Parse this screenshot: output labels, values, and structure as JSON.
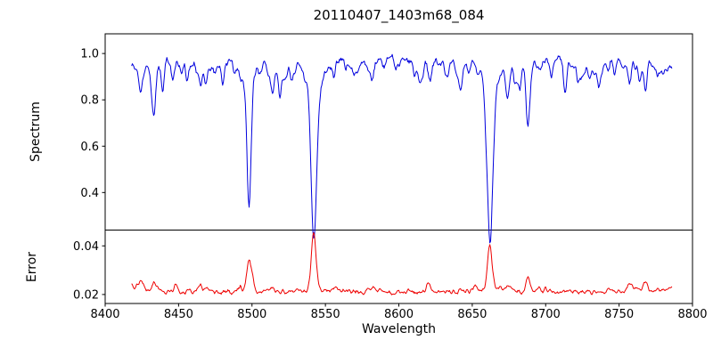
{
  "figure": {
    "background": "#ffffff"
  },
  "chart_data": {
    "type": "line",
    "title": "20110407_1403m68_084",
    "xlabel": "Wavelength",
    "x_range": [
      8400,
      8800
    ],
    "x_ticks": [
      8400,
      8450,
      8500,
      8550,
      8600,
      8650,
      8700,
      8750,
      8800
    ],
    "data_x_range": [
      8418,
      8786
    ],
    "grid": false,
    "legend": "none",
    "noise_seed": 20110407,
    "panels": [
      {
        "name": "spectrum",
        "ylabel": "Spectrum",
        "ylim": [
          0.238,
          1.085
        ],
        "yticks": [
          "0.4",
          "0.6",
          "0.8",
          "1.0"
        ],
        "color": "#0000dd",
        "baseline": 0.97,
        "noise_amp": 0.02,
        "absorption_lines": [
          [
            8424,
            0.88,
            1.2
          ],
          [
            8433,
            0.755,
            1.3
          ],
          [
            8439,
            0.87,
            1.0
          ],
          [
            8446,
            0.9,
            1.0
          ],
          [
            8452,
            0.92,
            0.9
          ],
          [
            8456,
            0.9,
            0.9
          ],
          [
            8465,
            0.87,
            1.1
          ],
          [
            8469,
            0.89,
            0.9
          ],
          [
            8475,
            0.93,
            0.9
          ],
          [
            8480,
            0.91,
            0.9
          ],
          [
            8488,
            0.93,
            0.9
          ],
          [
            8498.02,
            0.42,
            1.4
          ],
          [
            8505,
            0.93,
            0.9
          ],
          [
            8514,
            0.83,
            1.2
          ],
          [
            8519,
            0.86,
            1.0
          ],
          [
            8527,
            0.91,
            0.9
          ],
          [
            8536,
            0.93,
            0.9
          ],
          [
            8542.09,
            0.28,
            1.9
          ],
          [
            8556,
            0.92,
            1.0
          ],
          [
            8564,
            0.93,
            0.9
          ],
          [
            8572,
            0.94,
            0.9
          ],
          [
            8582,
            0.91,
            1.0
          ],
          [
            8590,
            0.93,
            0.9
          ],
          [
            8598,
            0.92,
            1.0
          ],
          [
            8611,
            0.93,
            0.9
          ],
          [
            8621,
            0.88,
            1.1
          ],
          [
            8632,
            0.94,
            0.9
          ],
          [
            8642,
            0.93,
            0.9
          ],
          [
            8648,
            0.92,
            0.9
          ],
          [
            8662.14,
            0.32,
            1.9
          ],
          [
            8674,
            0.84,
            1.2
          ],
          [
            8679,
            0.91,
            0.9
          ],
          [
            8688,
            0.75,
            1.3
          ],
          [
            8696,
            0.93,
            0.9
          ],
          [
            8704,
            0.92,
            0.9
          ],
          [
            8713,
            0.89,
            1.0
          ],
          [
            8722,
            0.93,
            0.9
          ],
          [
            8730,
            0.92,
            0.9
          ],
          [
            8736,
            0.9,
            1.0
          ],
          [
            8747,
            0.9,
            1.0
          ],
          [
            8757,
            0.88,
            1.1
          ],
          [
            8764,
            0.9,
            0.9
          ],
          [
            8768,
            0.87,
            1.0
          ],
          [
            8776,
            0.91,
            0.9
          ]
        ]
      },
      {
        "name": "error",
        "ylabel": "Error",
        "ylim": [
          0.0163,
          0.0465
        ],
        "yticks": [
          "0.02",
          "0.04"
        ],
        "color": "#ee0000",
        "baseline": 0.0212,
        "noise_amp": 0.0011,
        "peaks": [
          [
            8425,
            0.0245,
            1.5
          ],
          [
            8433,
            0.025,
            1.5
          ],
          [
            8465,
            0.0235,
            1.5
          ],
          [
            8498,
            0.0335,
            1.6
          ],
          [
            8514,
            0.0235,
            1.5
          ],
          [
            8542,
            0.0455,
            1.6
          ],
          [
            8582,
            0.023,
            1.5
          ],
          [
            8621,
            0.0235,
            1.5
          ],
          [
            8662,
            0.04,
            1.6
          ],
          [
            8674,
            0.024,
            1.5
          ],
          [
            8688,
            0.0265,
            1.5
          ],
          [
            8757,
            0.0235,
            1.5
          ],
          [
            8768,
            0.0245,
            1.5
          ]
        ]
      }
    ]
  }
}
